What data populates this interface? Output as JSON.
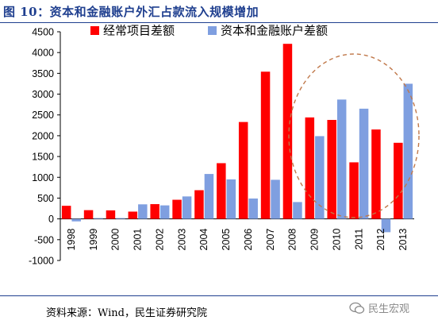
{
  "header": {
    "title": "图 10：资本和金融账户外汇占款流入规模增加"
  },
  "footer": {
    "source": "资料来源：Wind，民生证券研究院",
    "watermark": "民生宏观"
  },
  "colors": {
    "current": "#ff0000",
    "capital": "#7f9fe0",
    "ellipse": "#c0784a",
    "title": "#1f3f8f"
  },
  "chart_data": {
    "type": "bar",
    "title": "",
    "xlabel": "",
    "ylabel": "",
    "ylim": [
      -1000,
      4500
    ],
    "yticks": [
      -1000,
      -500,
      0,
      500,
      1000,
      1500,
      2000,
      2500,
      3000,
      3500,
      4000,
      4500
    ],
    "categories": [
      "1998",
      "1999",
      "2000",
      "2001",
      "2002",
      "2003",
      "2004",
      "2005",
      "2006",
      "2007",
      "2008",
      "2009",
      "2010",
      "2011",
      "2012",
      "2013"
    ],
    "series": [
      {
        "name": "经常项目差额",
        "values": [
          315,
          210,
          205,
          175,
          355,
          460,
          690,
          1340,
          2330,
          3540,
          4210,
          2440,
          2380,
          1360,
          2150,
          1830
        ]
      },
      {
        "name": "资本和金融账户差额",
        "values": [
          -60,
          20,
          20,
          350,
          325,
          540,
          1080,
          950,
          490,
          940,
          405,
          1990,
          2870,
          2650,
          -320,
          3250
        ]
      }
    ],
    "legend": "top",
    "grid": false,
    "annotation": "dashed ellipse highlighting 2009–2013"
  }
}
